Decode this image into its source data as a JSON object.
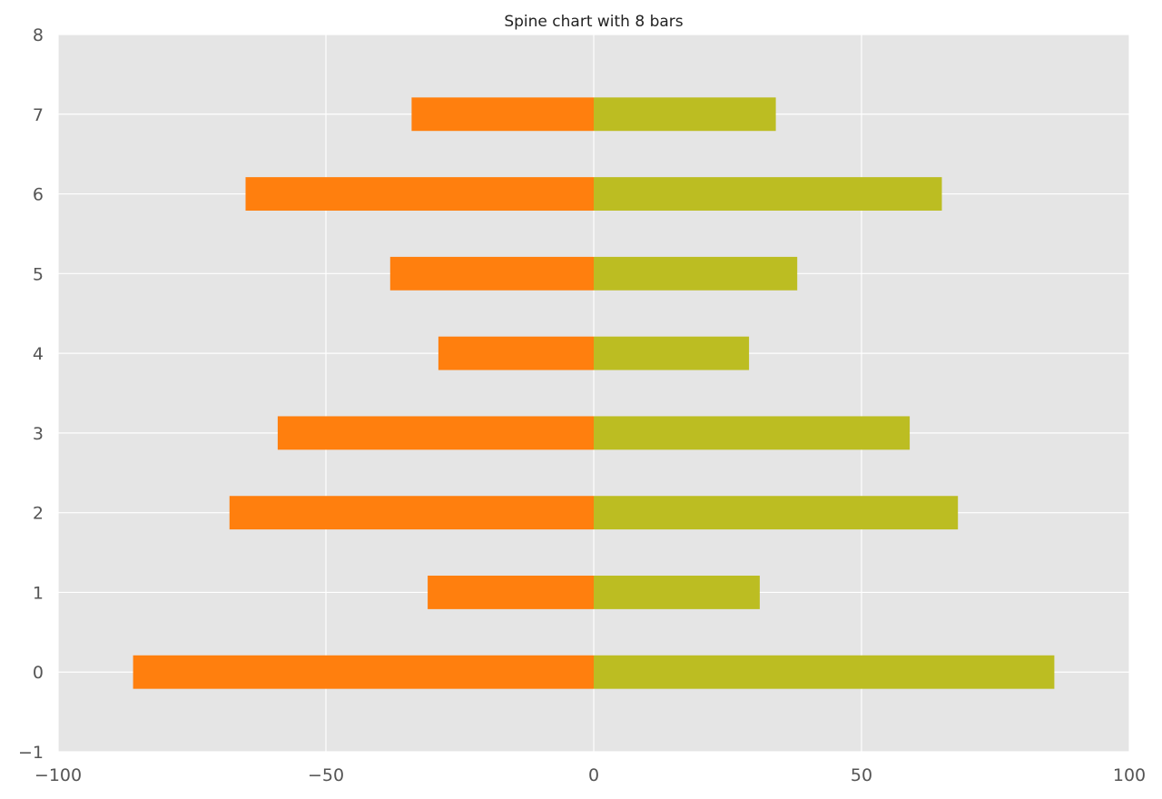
{
  "chart_data": {
    "type": "bar",
    "orientation": "horizontal",
    "title": "Spine chart with 8 bars",
    "xlabel": "",
    "ylabel": "",
    "xlim": [
      -100,
      100
    ],
    "ylim": [
      -1,
      8
    ],
    "x_ticks": [
      "−100",
      "−50",
      "0",
      "50",
      "100"
    ],
    "y_ticks": [
      "−1",
      "0",
      "1",
      "2",
      "3",
      "4",
      "5",
      "6",
      "7",
      "8"
    ],
    "categories": [
      0,
      1,
      2,
      3,
      4,
      5,
      6,
      7
    ],
    "grid": true,
    "background": "#e5e5e5",
    "series": [
      {
        "color": "#ff7f0e",
        "values": [
          -86,
          -31,
          -68,
          -59,
          -29,
          -38,
          -65,
          -34
        ]
      },
      {
        "color": "#bcbd22",
        "values": [
          86,
          31,
          68,
          59,
          29,
          38,
          65,
          34
        ]
      }
    ]
  }
}
